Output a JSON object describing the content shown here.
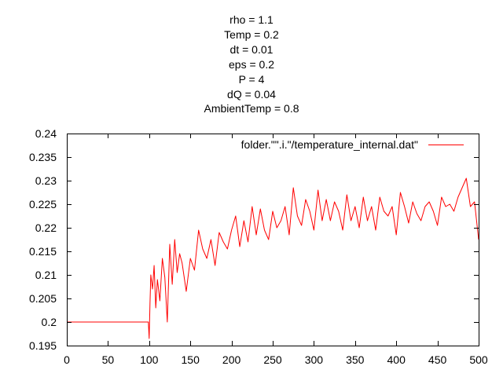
{
  "title_lines": [
    "rho = 1.1",
    "Temp = 0.2",
    "dt = 0.01",
    "eps = 0.2",
    "P = 4",
    "dQ = 0.04",
    "AmbientTemp = 0.8"
  ],
  "legend": {
    "label": "folder.\"\".i.\"/temperature_internal.dat\"",
    "position": "top-right"
  },
  "chart_data": {
    "type": "line",
    "title": "rho = 1.1\nTemp = 0.2\ndt = 0.01\neps = 0.2\nP = 4\ndQ = 0.04\nAmbientTemp = 0.8",
    "xlabel": "",
    "ylabel": "",
    "xlim": [
      0,
      500
    ],
    "ylim": [
      0.195,
      0.24
    ],
    "grid": false,
    "x_ticks": [
      "0",
      "50",
      "100",
      "150",
      "200",
      "250",
      "300",
      "350",
      "400",
      "450",
      "500"
    ],
    "y_ticks": [
      "0.195",
      "0.2",
      "0.205",
      "0.21",
      "0.215",
      "0.22",
      "0.225",
      "0.23",
      "0.235",
      "0.24"
    ],
    "series": [
      {
        "name": "folder.\"\".i.\"/temperature_internal.dat\"",
        "color": "#ff0000",
        "x": [
          0,
          10,
          20,
          30,
          40,
          50,
          60,
          70,
          80,
          90,
          99,
          100,
          101,
          102,
          104,
          106,
          108,
          110,
          113,
          116,
          119,
          122,
          125,
          128,
          131,
          134,
          137,
          140,
          145,
          150,
          155,
          160,
          165,
          170,
          175,
          180,
          185,
          190,
          195,
          200,
          205,
          210,
          215,
          220,
          225,
          230,
          235,
          240,
          245,
          250,
          255,
          260,
          265,
          270,
          275,
          280,
          285,
          290,
          295,
          300,
          305,
          310,
          315,
          320,
          325,
          330,
          335,
          340,
          345,
          350,
          355,
          360,
          365,
          370,
          375,
          380,
          385,
          390,
          395,
          400,
          405,
          410,
          415,
          420,
          425,
          430,
          435,
          440,
          445,
          450,
          455,
          460,
          465,
          470,
          475,
          480,
          485,
          490,
          495,
          500
        ],
        "y": [
          0.2,
          0.2,
          0.2,
          0.2,
          0.2,
          0.2,
          0.2,
          0.2,
          0.2,
          0.2,
          0.2,
          0.1965,
          0.204,
          0.21,
          0.207,
          0.212,
          0.203,
          0.209,
          0.2045,
          0.2135,
          0.2095,
          0.2,
          0.2165,
          0.208,
          0.2175,
          0.2105,
          0.2145,
          0.2125,
          0.2065,
          0.2135,
          0.211,
          0.2195,
          0.2155,
          0.2135,
          0.2175,
          0.212,
          0.219,
          0.217,
          0.2155,
          0.2195,
          0.2225,
          0.216,
          0.2215,
          0.217,
          0.2245,
          0.2185,
          0.224,
          0.2195,
          0.2175,
          0.2235,
          0.22,
          0.2215,
          0.2245,
          0.2185,
          0.2285,
          0.2225,
          0.2205,
          0.226,
          0.2235,
          0.2195,
          0.228,
          0.2215,
          0.226,
          0.2215,
          0.2255,
          0.2235,
          0.2195,
          0.227,
          0.2215,
          0.2245,
          0.22,
          0.2265,
          0.2215,
          0.2245,
          0.2195,
          0.2265,
          0.2235,
          0.2225,
          0.2245,
          0.2185,
          0.2275,
          0.2245,
          0.221,
          0.2255,
          0.223,
          0.2215,
          0.2245,
          0.2255,
          0.2235,
          0.2205,
          0.2265,
          0.2245,
          0.225,
          0.2235,
          0.2265,
          0.2285,
          0.2305,
          0.2245,
          0.2255,
          0.2175
        ]
      }
    ]
  }
}
